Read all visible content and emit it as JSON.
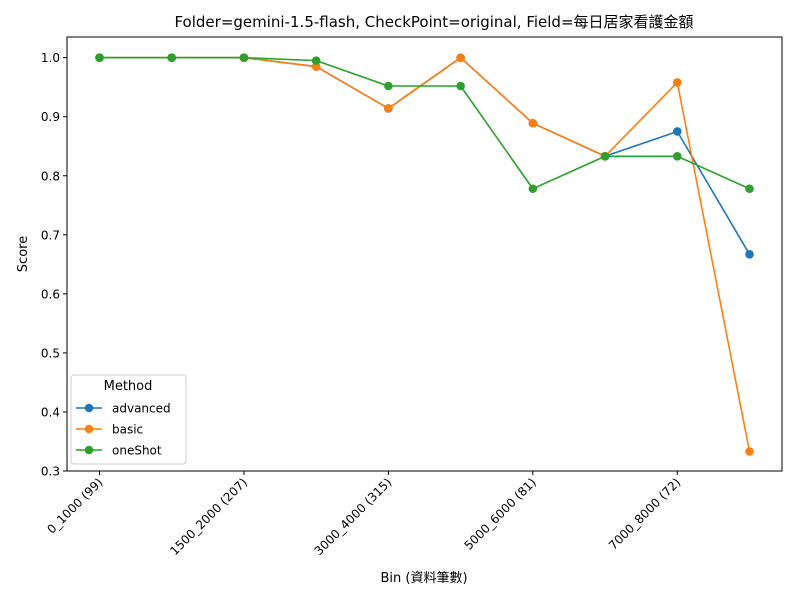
{
  "chart_data": {
    "type": "line",
    "title": "Folder=gemini-1.5-flash, CheckPoint=original, Field=每日居家看護金額",
    "xlabel": "Bin (資料筆數)",
    "ylabel": "Score",
    "ylim": [
      0.3,
      1.035
    ],
    "yticks": [
      0.3,
      0.4,
      0.5,
      0.6,
      0.7,
      0.8,
      0.9,
      1.0
    ],
    "ytick_labels": [
      "0.3",
      "0.4",
      "0.5",
      "0.6",
      "0.7",
      "0.8",
      "0.9",
      "1.0"
    ],
    "x": [
      0,
      1,
      2,
      3,
      4,
      5,
      6,
      7,
      8,
      9
    ],
    "xlim": [
      -0.45,
      9.45
    ],
    "xticks": [
      0,
      2,
      4,
      6,
      8
    ],
    "xtick_labels": [
      "0_1000 (99)",
      "1500_2000 (207)",
      "3000_4000 (315)",
      "5000_6000 (81)",
      "7000_8000 (72)"
    ],
    "legend": {
      "title": "Method",
      "placement": "lower-left"
    },
    "series": [
      {
        "name": "advanced",
        "color": "#1f77b4",
        "values": [
          1.0,
          1.0,
          1.0,
          0.985,
          0.914,
          1.0,
          0.889,
          0.833,
          0.875,
          0.667
        ]
      },
      {
        "name": "basic",
        "color": "#ff7f0e",
        "values": [
          1.0,
          1.0,
          1.0,
          0.985,
          0.914,
          1.0,
          0.889,
          0.833,
          0.958,
          0.333
        ]
      },
      {
        "name": "oneShot",
        "color": "#2ca02c",
        "values": [
          1.0,
          1.0,
          1.0,
          0.995,
          0.952,
          0.952,
          0.778,
          0.833,
          0.833,
          0.778
        ]
      }
    ]
  }
}
